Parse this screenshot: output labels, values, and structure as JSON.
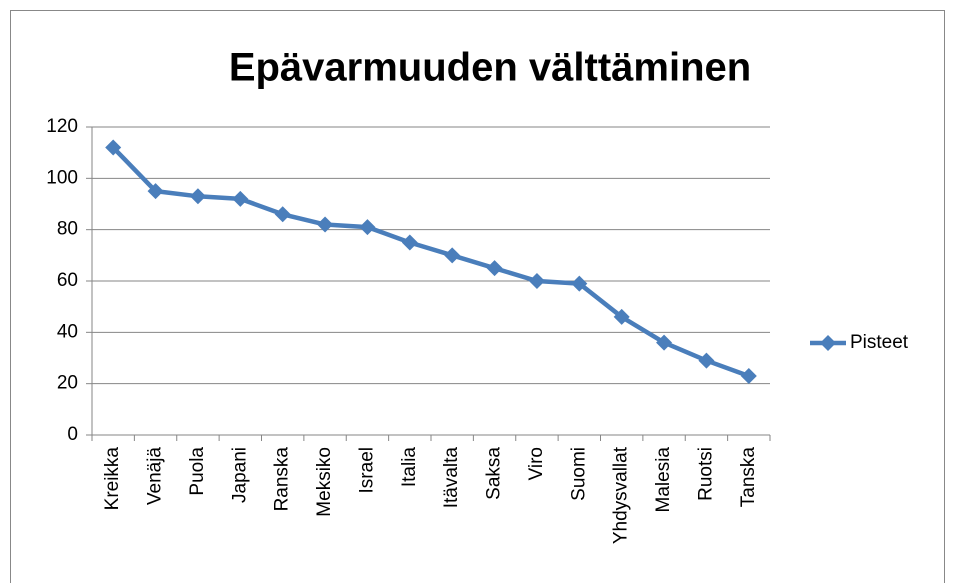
{
  "chart_data": {
    "type": "line",
    "title": "Epävarmuuden välttäminen",
    "categories": [
      "Kreikka",
      "Venäjä",
      "Puola",
      "Japani",
      "Ranska",
      "Meksiko",
      "Israel",
      "Italia",
      "Itävalta",
      "Saksa",
      "Viro",
      "Suomi",
      "Yhdysvallat",
      "Malesia",
      "Ruotsi",
      "Tanska"
    ],
    "series": [
      {
        "name": "Pisteet",
        "color": "#4a7ebb",
        "values": [
          112,
          95,
          93,
          92,
          86,
          82,
          81,
          75,
          70,
          65,
          60,
          59,
          46,
          36,
          29,
          23
        ]
      }
    ],
    "ylim": [
      0,
      120
    ],
    "yticks": [
      0,
      20,
      40,
      60,
      80,
      100,
      120
    ],
    "grid": true,
    "legend": "right"
  }
}
